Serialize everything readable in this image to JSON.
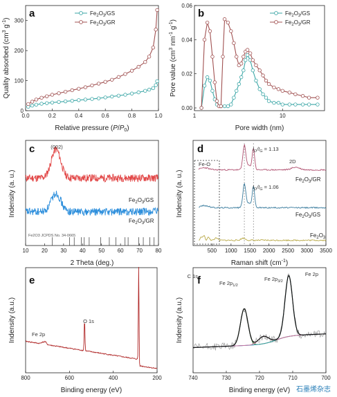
{
  "watermark": "石墨烯杂志",
  "chart_data": [
    {
      "panel": "a",
      "type": "line",
      "xlabel_parts": [
        "Relative pressure (",
        "P",
        "/",
        "P",
        "0",
        ")"
      ],
      "ylabel_parts": [
        "Quality absorbed (cm",
        "3",
        " g",
        "-1",
        ")"
      ],
      "xlim": [
        0.0,
        1.0
      ],
      "ylim": [
        0,
        350
      ],
      "xticks": [
        0.0,
        0.2,
        0.4,
        0.6,
        0.8,
        1.0
      ],
      "xtick_labels": [
        "0.0",
        "0.2",
        "0.4",
        "0.6",
        "0.8",
        "1.0"
      ],
      "yticks": [
        0,
        100,
        200,
        300
      ],
      "ytick_labels": [
        "0",
        "100",
        "200",
        "300"
      ],
      "legend_position": "top-center",
      "series": [
        {
          "name_parts": [
            "Fe",
            "2",
            "O",
            "3",
            "/GS"
          ],
          "color": "#3aa6a6",
          "x": [
            0.02,
            0.05,
            0.08,
            0.12,
            0.16,
            0.2,
            0.25,
            0.3,
            0.35,
            0.4,
            0.45,
            0.5,
            0.55,
            0.6,
            0.65,
            0.7,
            0.75,
            0.8,
            0.85,
            0.9,
            0.93,
            0.96,
            0.98,
            0.99
          ],
          "y": [
            13,
            17,
            20,
            23,
            25,
            27,
            29,
            31,
            33,
            35,
            37,
            39,
            41,
            44,
            47,
            50,
            53,
            57,
            61,
            66,
            70,
            75,
            85,
            98
          ]
        },
        {
          "name_parts": [
            "Fe",
            "2",
            "O",
            "3",
            "/GR"
          ],
          "color": "#a05050",
          "x": [
            0.02,
            0.05,
            0.08,
            0.12,
            0.16,
            0.2,
            0.25,
            0.3,
            0.35,
            0.4,
            0.45,
            0.5,
            0.55,
            0.6,
            0.65,
            0.7,
            0.75,
            0.8,
            0.85,
            0.9,
            0.93,
            0.96,
            0.98,
            0.99
          ],
          "y": [
            22,
            30,
            37,
            43,
            48,
            53,
            58,
            63,
            68,
            73,
            78,
            84,
            90,
            96,
            103,
            112,
            122,
            133,
            146,
            162,
            180,
            210,
            270,
            335
          ]
        }
      ]
    },
    {
      "panel": "b",
      "type": "line",
      "xlabel": "Pore width (nm)",
      "ylabel_parts": [
        "Pore value (cm",
        "3",
        " nm",
        "-1",
        " g",
        "-1",
        ")"
      ],
      "xscale": "log",
      "xlim": [
        1,
        30
      ],
      "ylim": [
        0,
        0.06
      ],
      "xticks": [
        1,
        10
      ],
      "xtick_labels": [
        "1",
        "10"
      ],
      "yticks": [
        0,
        0.02,
        0.04,
        0.06
      ],
      "ytick_labels": [
        "0.00",
        "0.02",
        "0.04",
        "0.06"
      ],
      "legend_position": "top-right",
      "series": [
        {
          "name_parts": [
            "Fe",
            "2",
            "O",
            "3",
            "/GS"
          ],
          "color": "#3aa6a6",
          "x": [
            1.2,
            1.3,
            1.4,
            1.5,
            1.6,
            1.7,
            1.8,
            2.0,
            2.2,
            2.4,
            2.6,
            2.8,
            3.0,
            3.2,
            3.4,
            3.6,
            3.8,
            4.0,
            4.3,
            4.6,
            5.0,
            5.5,
            6.0,
            6.5,
            7.0,
            8.0,
            9.0,
            10,
            12,
            14,
            17,
            20,
            25
          ],
          "y": [
            0.0,
            0.013,
            0.018,
            0.016,
            0.01,
            0.005,
            0.002,
            0.001,
            0.001,
            0.001,
            0.002,
            0.006,
            0.01,
            0.014,
            0.018,
            0.022,
            0.028,
            0.031,
            0.028,
            0.022,
            0.016,
            0.011,
            0.008,
            0.006,
            0.004,
            0.003,
            0.003,
            0.002,
            0.002,
            0.002,
            0.002,
            0.002,
            0.002
          ]
        },
        {
          "name_parts": [
            "Fe",
            "2",
            "O",
            "3",
            "/GR"
          ],
          "color": "#a05050",
          "x": [
            1.2,
            1.3,
            1.4,
            1.5,
            1.6,
            1.7,
            1.8,
            1.9,
            2.0,
            2.1,
            2.2,
            2.4,
            2.6,
            2.8,
            3.0,
            3.2,
            3.4,
            3.6,
            3.8,
            4.0,
            4.3,
            4.6,
            5.0,
            5.5,
            6.0,
            6.5,
            7.0,
            8.0,
            9.0,
            10,
            12,
            14,
            17,
            20,
            25
          ],
          "y": [
            0.0,
            0.04,
            0.05,
            0.045,
            0.03,
            0.015,
            0.004,
            0.001,
            0.001,
            0.03,
            0.052,
            0.05,
            0.045,
            0.038,
            0.03,
            0.025,
            0.026,
            0.03,
            0.033,
            0.034,
            0.032,
            0.028,
            0.025,
            0.022,
            0.019,
            0.016,
            0.014,
            0.012,
            0.011,
            0.01,
            0.009,
            0.008,
            0.007,
            0.006,
            0.006
          ]
        }
      ]
    },
    {
      "panel": "c",
      "type": "line",
      "xlabel": "2 Theta (deg.)",
      "ylabel": "Indensity (a. u.)",
      "xlim": [
        10,
        80
      ],
      "xticks": [
        10,
        20,
        30,
        40,
        50,
        60,
        70,
        80
      ],
      "xtick_labels": [
        "10",
        "20",
        "30",
        "40",
        "50",
        "60",
        "70",
        "80"
      ],
      "peak_label": "(002)",
      "peak_x": 26,
      "reference_label": "Fe2O3 JCPDS No. 34-0665",
      "reference_lines_x": [
        24.1,
        33.2,
        35.6,
        39.3,
        40.9,
        43.5,
        49.5,
        54.1,
        57.6,
        62.4,
        64.0,
        69.6,
        72.0,
        75.4,
        77.7
      ],
      "series": [
        {
          "name_parts": [
            "Fe",
            "2",
            "O",
            "3",
            "/GS"
          ],
          "color": "#e24848",
          "baseline": 0.62,
          "peak_height": 0.34,
          "peak_x": 26,
          "peak_width": 3.5
        },
        {
          "name_parts": [
            "Fe",
            "2",
            "O",
            "3",
            "/GR"
          ],
          "color": "#2e8fdc",
          "baseline": 0.22,
          "peak_height": 0.22,
          "peak_x": 26,
          "peak_width": 3.5
        }
      ]
    },
    {
      "panel": "d",
      "type": "line",
      "xlabel_parts": [
        "Raman shift (cm",
        "-1",
        ")"
      ],
      "ylabel": "Indensity (a. u.)",
      "xlim": [
        0,
        3500
      ],
      "xticks": [
        500,
        1000,
        1500,
        2000,
        2500,
        3000,
        3500
      ],
      "xtick_labels": [
        "500",
        "1000",
        "1500",
        "2000",
        "2500",
        "3000",
        "3500"
      ],
      "box_label": "Fe-O",
      "label_2d": "2D",
      "ratio_gr_parts": [
        "I",
        "D",
        "/I",
        "G",
        " = 1.13"
      ],
      "ratio_gs_parts": [
        "I",
        "D",
        "/I",
        "G",
        " = 1.06"
      ],
      "d_band": 1350,
      "g_band": 1590,
      "series": [
        {
          "name_parts": [
            "Fe",
            "2",
            "O",
            "3",
            "/GR"
          ],
          "color": "#b05070",
          "offset": 0.72,
          "d_height": 0.23,
          "g_height": 0.2,
          "has_2d": true
        },
        {
          "name_parts": [
            "Fe",
            "2",
            "O",
            "3",
            "/GS"
          ],
          "color": "#3a7c9e",
          "offset": 0.36,
          "d_height": 0.22,
          "g_height": 0.2,
          "has_2d": false
        },
        {
          "name_parts": [
            "Fe",
            "2",
            "O",
            "3"
          ],
          "color": "#b8a845",
          "offset": 0.05,
          "fe_only": true
        }
      ]
    },
    {
      "panel": "e",
      "type": "line",
      "xlabel": "Binding energy (eV)",
      "ylabel": "Indensity (a.u.)",
      "xlim": [
        800,
        200
      ],
      "xticks": [
        800,
        600,
        400,
        200
      ],
      "xtick_labels": [
        "800",
        "600",
        "400",
        "200"
      ],
      "peak_labels": [
        {
          "text": "C 1s",
          "x": 284
        },
        {
          "text": "O 1s",
          "x": 531
        },
        {
          "text": "Fe 2p",
          "x": 711
        }
      ],
      "color": "#b02828"
    },
    {
      "panel": "f",
      "type": "line",
      "xlabel": "Binding energy (eV)",
      "ylabel": "Indensity (a.u.)",
      "xlim": [
        740,
        700
      ],
      "xticks": [
        740,
        730,
        720,
        710,
        700
      ],
      "xtick_labels": [
        "740",
        "730",
        "720",
        "710",
        "700"
      ],
      "title": "Fe 2p",
      "peak_label_12_parts": [
        "Fe 2p",
        "1/2"
      ],
      "peak_label_32_parts": [
        "Fe 2p",
        "3/2"
      ],
      "peaks": [
        {
          "center": 724.6,
          "height": 0.35,
          "width": 1.6,
          "color": "#3a8f3a"
        },
        {
          "center": 711.2,
          "height": 0.58,
          "width": 1.6,
          "color": "#3aa6a6"
        },
        {
          "center": 718.8,
          "height": 0.07,
          "width": 2.2,
          "color": "#d070a0"
        }
      ],
      "colors": {
        "raw": "#9a9a9a",
        "fit": "#111111",
        "background": "#6a6ad0"
      }
    }
  ]
}
